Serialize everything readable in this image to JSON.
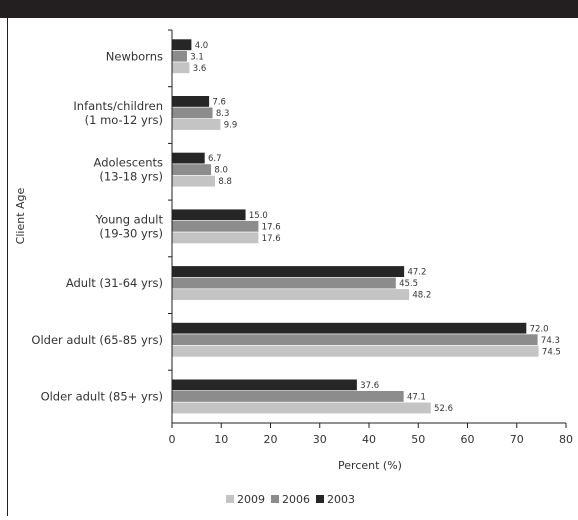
{
  "chart_data": {
    "type": "bar",
    "orientation": "horizontal",
    "title": "",
    "xlabel": "Percent (%)",
    "ylabel": "Client Age",
    "xlim": [
      0,
      80
    ],
    "xticks": [
      "0",
      "10",
      "20",
      "30",
      "40",
      "50",
      "60",
      "70",
      "80"
    ],
    "grid": false,
    "legend": "bottom",
    "categories": [
      [
        "Newborns"
      ],
      [
        "Infants/children",
        "(1 mo-12 yrs)"
      ],
      [
        "Adolescents",
        "(13-18 yrs)"
      ],
      [
        "Young adult",
        "(19-30 yrs)"
      ],
      [
        "Adult (31-64 yrs)"
      ],
      [
        "Older adult (65-85 yrs)"
      ],
      [
        "Older adult (85+ yrs)"
      ]
    ],
    "series": [
      {
        "name": "2003",
        "color": "#262626",
        "values": [
          4.0,
          7.6,
          6.7,
          15.0,
          47.2,
          72.0,
          37.6
        ],
        "labels": [
          "4.0",
          "7.6",
          "6.7",
          "15.0",
          "47.2",
          "72.0",
          "37.6"
        ]
      },
      {
        "name": "2006",
        "color": "#8c8c8c",
        "values": [
          3.1,
          8.3,
          8.0,
          17.6,
          45.5,
          74.3,
          47.1
        ],
        "labels": [
          "3.1",
          "8.3",
          "8.0",
          "17.6",
          "45.5",
          "74.3",
          "47.1"
        ]
      },
      {
        "name": "2009",
        "color": "#c4c4c4",
        "values": [
          3.6,
          9.9,
          8.8,
          17.6,
          48.2,
          74.5,
          52.6
        ],
        "labels": [
          "3.6",
          "9.9",
          "8.8",
          "17.6",
          "48.2",
          "74.5",
          "52.6"
        ]
      }
    ],
    "legend_order": [
      "2009",
      "2006",
      "2003"
    ]
  }
}
